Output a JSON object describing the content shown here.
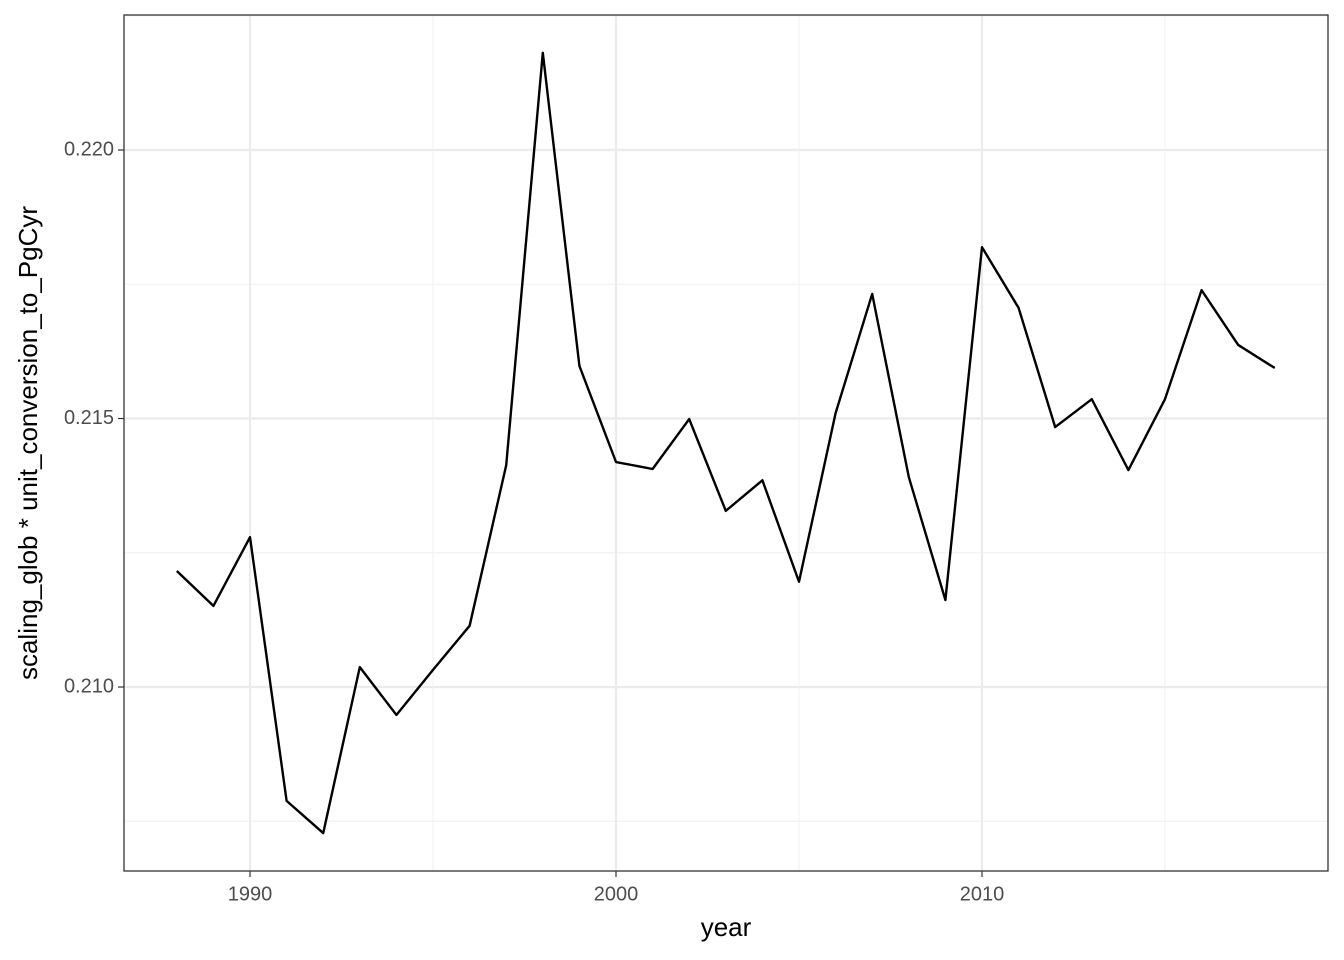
{
  "chart_data": {
    "type": "line",
    "x_label": "year",
    "y_label": "scaling_glob * unit_conversion_to_PgCyr",
    "x": [
      1988,
      1989,
      1990,
      1991,
      1992,
      1993,
      1994,
      1995,
      1996,
      1997,
      1998,
      1999,
      2000,
      2001,
      2002,
      2003,
      2004,
      2005,
      2006,
      2007,
      2008,
      2009,
      2010,
      2011,
      2012,
      2013,
      2014,
      2015,
      2016,
      2017,
      2018
    ],
    "series": [
      {
        "color": "#000000",
        "values": [
          0.21216,
          0.21151,
          0.21279,
          0.20788,
          0.20728,
          0.21037,
          0.20948,
          0.21032,
          0.21114,
          0.21413,
          0.22181,
          0.21598,
          0.21419,
          0.21406,
          0.21499,
          0.21328,
          0.21385,
          0.21196,
          0.2151,
          0.21732,
          0.21391,
          0.21162,
          0.21819,
          0.21706,
          0.21484,
          0.21536,
          0.21404,
          0.21536,
          0.21739,
          0.21637,
          0.21594
        ]
      }
    ],
    "xlim": [
      1986.557,
      2019.454
    ],
    "ylim": [
      0.206574,
      0.222514
    ],
    "xticks": [
      1990,
      2000,
      2010
    ],
    "yticks": [
      {
        "value": 0.21,
        "label": "0.210"
      },
      {
        "value": 0.215,
        "label": "0.215"
      },
      {
        "value": 0.22,
        "label": "0.220"
      }
    ],
    "grid": true
  }
}
